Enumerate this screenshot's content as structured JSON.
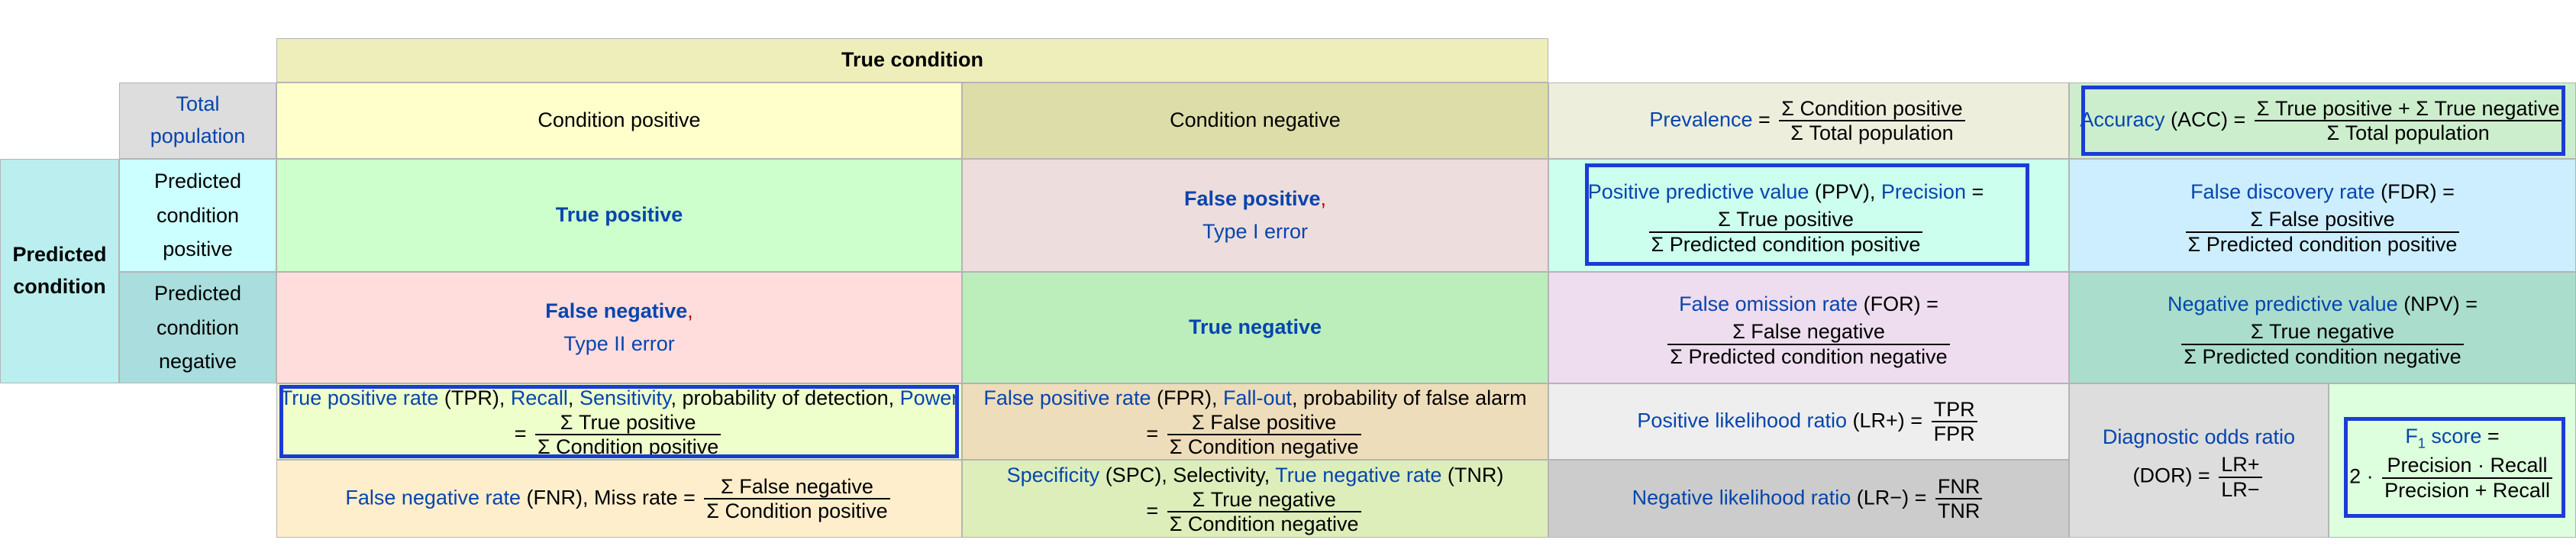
{
  "header": {
    "true_condition": "True condition",
    "total_population": "Total population",
    "condition_positive": "Condition positive",
    "condition_negative": "Condition negative",
    "predicted_condition": "Predicted condition",
    "predicted_condition_positive": "Predicted condition positive",
    "predicted_condition_negative": "Predicted condition negative"
  },
  "cells": {
    "true_positive": "True positive",
    "false_positive": "False positive",
    "false_positive_comma": ",",
    "type1": "Type I error",
    "false_negative": "False negative",
    "false_negative_comma": ",",
    "type2": "Type II error",
    "true_negative": "True negative"
  },
  "metrics": {
    "prevalence": {
      "name": "Prevalence",
      "eq": " =",
      "num": "Σ Condition positive",
      "den": "Σ Total population"
    },
    "accuracy": {
      "name": "Accuracy",
      "abbr": " (ACC) =",
      "num": "Σ True positive + Σ True negative",
      "den": "Σ Total population"
    },
    "ppv": {
      "name": "Positive predictive value",
      "abbr": " (PPV), ",
      "alt": "Precision",
      "eq": " =",
      "num": "Σ True positive",
      "den": "Σ Predicted condition positive"
    },
    "fdr": {
      "name": "False discovery rate",
      "abbr": " (FDR) =",
      "num": "Σ False positive",
      "den": "Σ Predicted condition positive"
    },
    "for": {
      "name": "False omission rate",
      "abbr": " (FOR) =",
      "num": "Σ False negative",
      "den": "Σ Predicted condition negative"
    },
    "npv": {
      "name": "Negative predictive value",
      "abbr": " (NPV) =",
      "num": "Σ True negative",
      "den": "Σ Predicted condition negative"
    },
    "tpr": {
      "name": "True positive rate",
      "abbr": " (TPR), ",
      "recall": "Recall",
      "comma1": ", ",
      "sensitivity": "Sensitivity",
      "text": ", probability of detection, ",
      "power": "Power",
      "eq": "=",
      "num": "Σ True positive",
      "den": "Σ Condition positive"
    },
    "fpr": {
      "name": "False positive rate",
      "abbr": " (FPR), ",
      "fallout": "Fall-out",
      "text": ", probability of false alarm",
      "eq": "=",
      "num": "Σ False positive",
      "den": "Σ Condition negative"
    },
    "lrp": {
      "name": "Positive likelihood ratio",
      "abbr": " (LR+) =",
      "num": "TPR",
      "den": "FPR"
    },
    "fnr": {
      "name": "False negative rate",
      "abbr": " (FNR), Miss rate =",
      "num": "Σ False negative",
      "den": "Σ Condition positive"
    },
    "spc": {
      "name": "Specificity",
      "abbr": " (SPC), Selectivity, ",
      "tnr": "True negative rate",
      "abbr2": " (TNR)",
      "eq": "=",
      "num": "Σ True negative",
      "den": "Σ Condition negative"
    },
    "lrn": {
      "name": "Negative likelihood ratio",
      "abbr": " (LR−) =",
      "num": "FNR",
      "den": "TNR"
    },
    "dor": {
      "name": "Diagnostic odds ratio",
      "abbr": "(DOR) =",
      "num": "LR+",
      "den": "LR−"
    },
    "f1": {
      "name": "F",
      "sub": "1",
      "name2": " score",
      "eq": " =",
      "prefix": "2 ·",
      "num": "Precision · Recall",
      "den": "Precision + Recall"
    }
  },
  "colors": {
    "true_condition_bg": "#eeeebb",
    "condition_positive_bg": "#ffffcc",
    "condition_negative_bg": "#ddddaa",
    "total_population_bg": "#dddddd",
    "predicted_condition_bg": "#bbeeee",
    "predicted_positive_bg": "#ccffff",
    "predicted_negative_bg": "#aadddd",
    "true_positive_bg": "#ccffcc",
    "false_positive_bg": "#eedddd",
    "false_negative_bg": "#ffdddd",
    "true_negative_bg": "#bbeebb",
    "prevalence_bg": "#eeeedd",
    "accuracy_bg": "#cceecc",
    "ppv_bg": "#ccffee",
    "fdr_bg": "#cceeff",
    "for_bg": "#eeddee",
    "npv_bg": "#aaddcc",
    "tpr_bg": "#eeffcc",
    "fpr_bg": "#eeddbb",
    "lrp_bg": "#eeeeee",
    "fnr_bg": "#ffeecc",
    "spc_bg": "#ddeebb",
    "lrn_bg": "#cccccc",
    "dor_bg": "#dddddd",
    "f1_bg": "#ddffdd",
    "highlight_border": "#1a3cd6",
    "link_blue": "#0645ad"
  }
}
